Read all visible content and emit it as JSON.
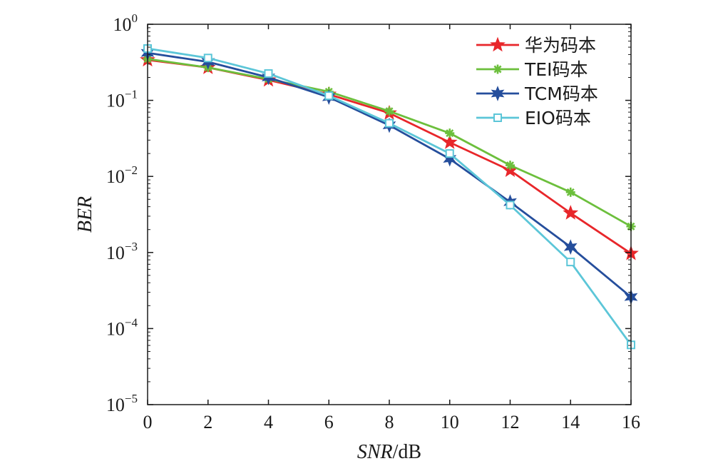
{
  "chart_data": {
    "type": "line",
    "xlabel_italic": "SNR",
    "xlabel_unit": "/dB",
    "ylabel": "BER",
    "x_scale": "linear",
    "y_scale": "log",
    "xlim": [
      0,
      16
    ],
    "ylim": [
      1e-05,
      1
    ],
    "x_ticks": [
      0,
      2,
      4,
      6,
      8,
      10,
      12,
      14,
      16
    ],
    "x_tick_labels": [
      "0",
      "2",
      "4",
      "6",
      "8",
      "10",
      "12",
      "14",
      "16"
    ],
    "y_ticks": [
      1,
      0.1,
      0.01,
      0.001,
      0.0001,
      1e-05
    ],
    "y_tick_labels": [
      {
        "base": "10",
        "exp": "0"
      },
      {
        "base": "10",
        "exp": "−1"
      },
      {
        "base": "10",
        "exp": "−2"
      },
      {
        "base": "10",
        "exp": "−3"
      },
      {
        "base": "10",
        "exp": "−4"
      },
      {
        "base": "10",
        "exp": "−5"
      }
    ],
    "grid": false,
    "legend_position": "top-right",
    "x": [
      0,
      2,
      4,
      6,
      8,
      10,
      12,
      14,
      16
    ],
    "series": [
      {
        "name": "华为码本",
        "color": "#e8262a",
        "marker": "star5",
        "values": [
          0.34,
          0.27,
          0.185,
          0.12,
          0.068,
          0.028,
          0.012,
          0.0033,
          0.00097
        ]
      },
      {
        "name": "TEI码本",
        "color": "#6cbf3c",
        "marker": "asterisk",
        "values": [
          0.35,
          0.27,
          0.19,
          0.13,
          0.072,
          0.037,
          0.014,
          0.0062,
          0.0022
        ]
      },
      {
        "name": "TCM码本",
        "color": "#254e9c",
        "marker": "star6",
        "values": [
          0.42,
          0.32,
          0.2,
          0.11,
          0.047,
          0.017,
          0.0046,
          0.00118,
          0.00026
        ]
      },
      {
        "name": "EIO码本",
        "color": "#5cc6d8",
        "marker": "square",
        "values": [
          0.48,
          0.36,
          0.225,
          0.115,
          0.05,
          0.02,
          0.0042,
          0.00075,
          6.1e-05
        ]
      }
    ]
  }
}
